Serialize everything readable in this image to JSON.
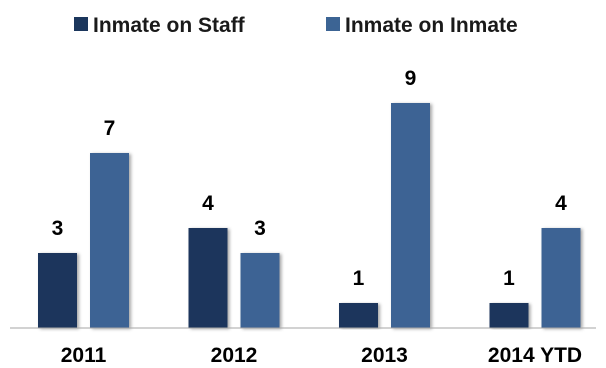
{
  "chart_data": {
    "type": "bar",
    "title": "",
    "xlabel": "",
    "ylabel": "",
    "categories": [
      "2011",
      "2012",
      "2013",
      "2014 YTD"
    ],
    "series": [
      {
        "name": "Inmate on Staff",
        "values": [
          3,
          4,
          1,
          1
        ],
        "color": "#1b365c"
      },
      {
        "name": "Inmate on Inmate",
        "values": [
          7,
          3,
          9,
          4
        ],
        "color": "#3c6494"
      }
    ],
    "ylim": [
      0,
      9
    ],
    "grid": false,
    "legend": "top-center",
    "data_labels": true
  }
}
